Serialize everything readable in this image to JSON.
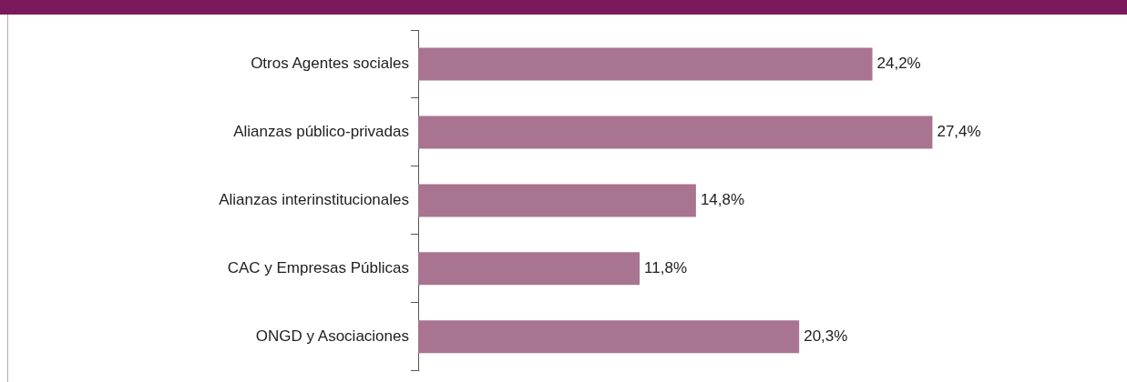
{
  "chart_data": {
    "type": "bar",
    "orientation": "horizontal",
    "categories": [
      "Otros Agentes sociales",
      "Alianzas público-privadas",
      "Alianzas interinstitucionales",
      "CAC y Empresas Públicas",
      "ONGD y Asociaciones"
    ],
    "values": [
      24.2,
      27.4,
      14.8,
      11.8,
      20.3
    ],
    "value_labels": [
      "24,2%",
      "27,4%",
      "14,8%",
      "11,8%",
      "20,3%"
    ],
    "color": "#a87490",
    "tick_labels": "y",
    "grid": false,
    "legend": false
  }
}
